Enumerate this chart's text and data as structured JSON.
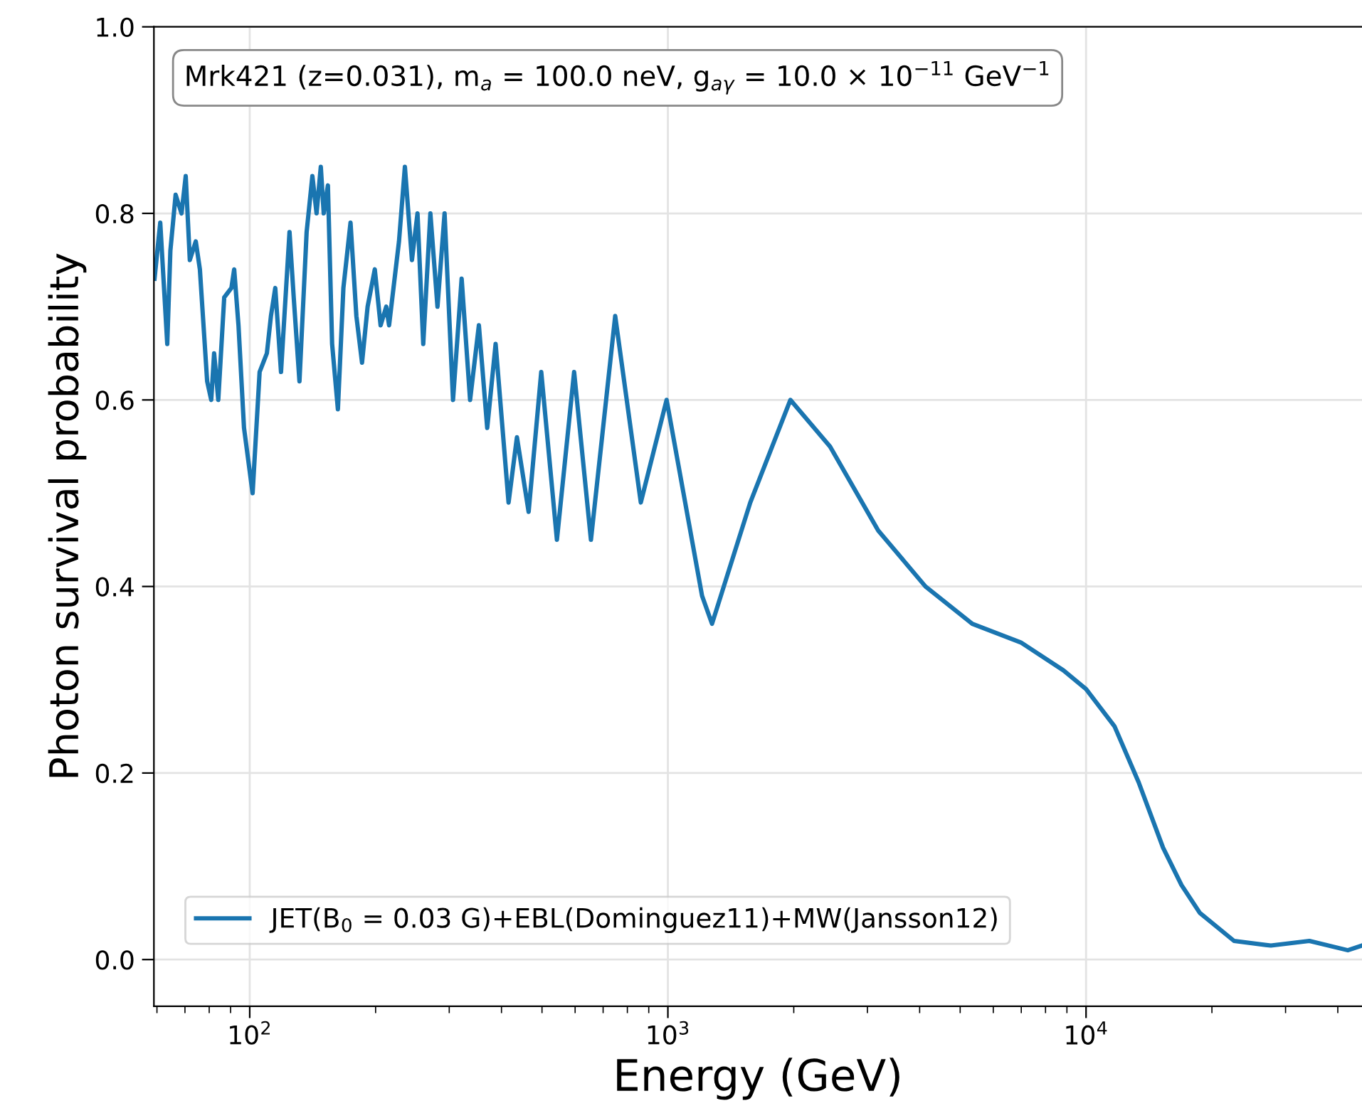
{
  "chart_data": {
    "type": "line",
    "xlabel": "Energy (GeV)",
    "ylabel": "Photon survival probability",
    "annotations": [
      "Mrk421 (z=0.031), m$_{a}$ = 100.0 neV, g$_{aγ}$ = 10.0 × 10$^{−11}$ GeV$^{−1}$"
    ],
    "log": "x",
    "xlim": [
      59,
      45700
    ],
    "ylim": [
      -0.05,
      1.0
    ],
    "xticks": [
      {
        "value": 100,
        "label": "10$^{2}$"
      },
      {
        "value": 1000,
        "label": "10$^{3}$"
      },
      {
        "value": 10000,
        "label": "10$^{4}$"
      }
    ],
    "yticks": [
      {
        "value": 0.0,
        "label": "0.0"
      },
      {
        "value": 0.2,
        "label": "0.2"
      },
      {
        "value": 0.4,
        "label": "0.4"
      },
      {
        "value": 0.6,
        "label": "0.6"
      },
      {
        "value": 0.8,
        "label": "0.8"
      },
      {
        "value": 1.0,
        "label": "1.0"
      }
    ],
    "grid": true,
    "legend": "bottom left",
    "marker": "none",
    "line_style": "solid",
    "series": [
      {
        "name": "JET(B$_{0}$ = 0.03 G)+EBL(Dominguez11)+MW(Jansson12)",
        "color": "#1a75b0",
        "x": [
          59.2,
          61.1,
          63.5,
          64.6,
          66.5,
          68.7,
          70.3,
          71.9,
          74.3,
          76.0,
          79.1,
          80.9,
          82.2,
          84.1,
          86.9,
          90.4,
          91.8,
          94.0,
          96.9,
          101.6,
          105.6,
          109.9,
          112.4,
          115.1,
          118.8,
          124.5,
          127.4,
          131.5,
          136.8,
          141.2,
          144.5,
          147.9,
          150.3,
          153.8,
          157.4,
          162.5,
          167.5,
          174.2,
          179.9,
          185.6,
          191.4,
          199.1,
          205.6,
          212.1,
          215.4,
          227.5,
          235.0,
          244.3,
          251.9,
          260.0,
          270.4,
          281.2,
          292.4,
          306.3,
          321.2,
          336.5,
          353.2,
          369.8,
          387.3,
          415.9,
          435.5,
          464.5,
          497.9,
          542.8,
          596.7,
          654.6,
          748.2,
          861.5,
          993,
          1207,
          1275,
          1574,
          1963,
          2443,
          3184,
          4130,
          5345,
          6982,
          8830,
          10000,
          11700,
          13360,
          15280,
          16910,
          18710,
          22590,
          27670,
          34200,
          42270,
          45700
        ],
        "values": [
          0.73,
          0.79,
          0.66,
          0.76,
          0.82,
          0.8,
          0.84,
          0.75,
          0.77,
          0.74,
          0.62,
          0.6,
          0.65,
          0.6,
          0.71,
          0.72,
          0.74,
          0.68,
          0.57,
          0.5,
          0.63,
          0.65,
          0.69,
          0.72,
          0.63,
          0.78,
          0.71,
          0.62,
          0.78,
          0.84,
          0.8,
          0.85,
          0.8,
          0.83,
          0.66,
          0.59,
          0.72,
          0.79,
          0.69,
          0.64,
          0.7,
          0.74,
          0.68,
          0.7,
          0.68,
          0.77,
          0.85,
          0.75,
          0.8,
          0.66,
          0.8,
          0.7,
          0.8,
          0.6,
          0.73,
          0.6,
          0.68,
          0.57,
          0.66,
          0.49,
          0.56,
          0.48,
          0.63,
          0.45,
          0.63,
          0.45,
          0.69,
          0.49,
          0.6,
          0.39,
          0.36,
          0.49,
          0.6,
          0.55,
          0.46,
          0.4,
          0.36,
          0.34,
          0.31,
          0.29,
          0.25,
          0.19,
          0.12,
          0.08,
          0.05,
          0.02,
          0.015,
          0.02,
          0.01,
          0.015
        ]
      }
    ]
  }
}
